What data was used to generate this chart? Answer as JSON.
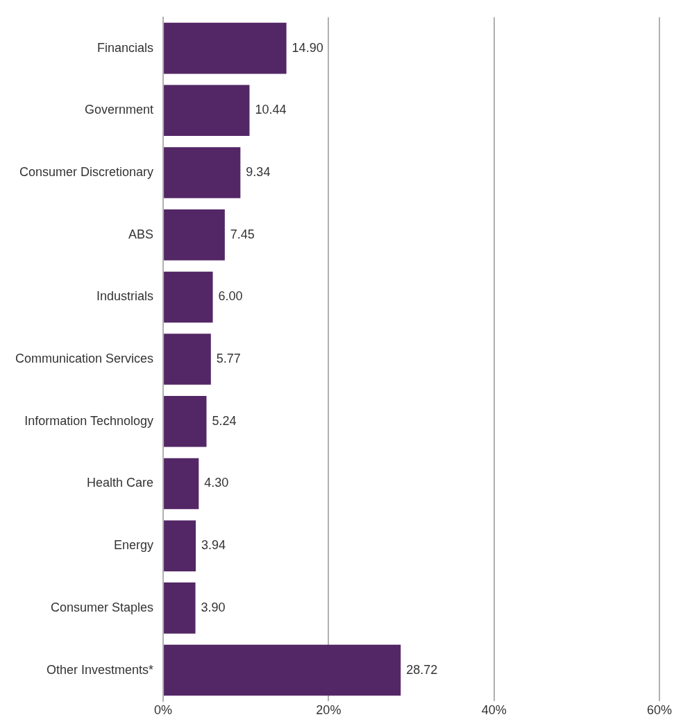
{
  "chart_data": {
    "type": "bar",
    "orientation": "horizontal",
    "categories": [
      "Financials",
      "Government",
      "Consumer Discretionary",
      "ABS",
      "Industrials",
      "Communication Services",
      "Information Technology",
      "Health Care",
      "Energy",
      "Consumer Staples",
      "Other Investments*"
    ],
    "values": [
      14.9,
      10.44,
      9.34,
      7.45,
      6.0,
      5.77,
      5.24,
      4.3,
      3.94,
      3.9,
      28.72
    ],
    "value_labels": [
      "14.90",
      "10.44",
      "9.34",
      "7.45",
      "6.00",
      "5.77",
      "5.24",
      "4.30",
      "3.94",
      "3.90",
      "28.72"
    ],
    "color": "#532766",
    "xlim": [
      0,
      60
    ],
    "xticks": [
      {
        "value": 0,
        "label": "0%"
      },
      {
        "value": 20,
        "label": "20%"
      },
      {
        "value": 40,
        "label": "40%"
      },
      {
        "value": 60,
        "label": "60%"
      }
    ],
    "grid": "x",
    "legend": false
  }
}
